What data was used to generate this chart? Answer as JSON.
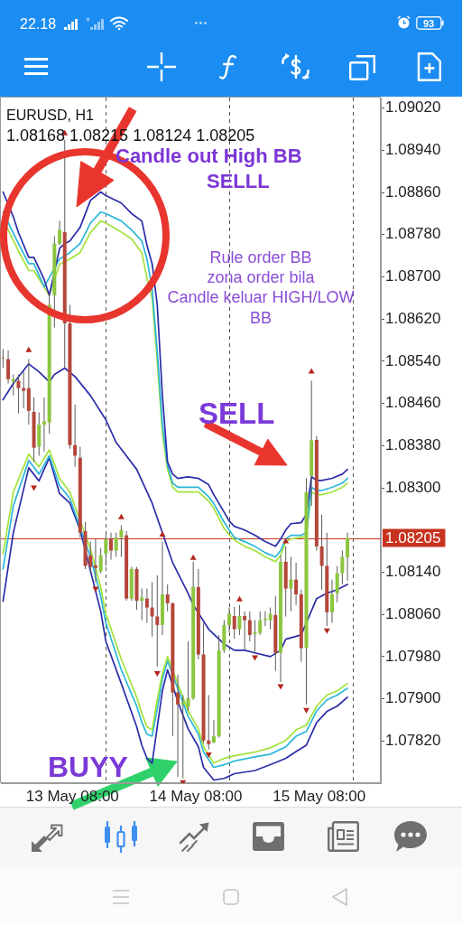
{
  "chart_data": {
    "type": "candlestick",
    "x": [
      "--05-12T18:30",
      "--05-12T19:30",
      "--05-12T20:30",
      "--05-12T21:30",
      "--05-12T22:30",
      "--05-12T23:30",
      "--05-13T00:30",
      "--05-13T01:30",
      "--05-13T02:30",
      "--05-13T03:30",
      "--05-13T04:30",
      "--05-13T05:30",
      "--05-13T06:30",
      "--05-13T07:30",
      "--05-13T08:30",
      "--05-13T09:30",
      "--05-13T10:30",
      "--05-13T11:30",
      "--05-13T12:30",
      "--05-13T13:30",
      "--05-13T14:30",
      "--05-13T15:30",
      "--05-13T16:30",
      "--05-13T17:30",
      "--05-13T18:30",
      "--05-13T19:30",
      "--05-13T20:30",
      "--05-13T21:30",
      "--05-13T22:30",
      "--05-13T23:30",
      "--05-14T00:30",
      "--05-14T01:30",
      "--05-14T02:30",
      "--05-14T03:30",
      "--05-14T04:30",
      "--05-14T05:30",
      "--05-14T06:30",
      "--05-14T07:30",
      "--05-14T08:30",
      "--05-14T09:30",
      "--05-14T10:30",
      "--05-14T11:30",
      "--05-14T12:30",
      "--05-14T13:30",
      "--05-14T14:30",
      "--05-14T15:30",
      "--05-14T16:30",
      "--05-14T17:30",
      "--05-14T18:30",
      "--05-14T19:30",
      "--05-14T20:30",
      "--05-14T21:30",
      "--05-14T22:30",
      "--05-14T23:30",
      "--05-15T00:30",
      "--05-15T01:30",
      "--05-15T02:30",
      "--05-15T03:30",
      "--05-15T04:30",
      "--05-15T05:30",
      "--05-15T06:30",
      "--05-15T07:30",
      "--05-15T08:30",
      "--05-15T09:30",
      "--05-15T10:30",
      "--05-15T11:30",
      "--05-15T12:30",
      "--05-15T13:30"
    ],
    "ohlc": [
      [
        1.08547,
        1.08563,
        1.08528,
        1.08546
      ],
      [
        1.08544,
        1.08561,
        1.08498,
        1.08506
      ],
      [
        1.08501,
        1.08515,
        1.08475,
        1.08506
      ],
      [
        1.08503,
        1.08515,
        1.08441,
        1.08489
      ],
      [
        1.08489,
        1.0852,
        1.08451,
        1.08484
      ],
      [
        1.08489,
        1.08544,
        1.0842,
        1.08446
      ],
      [
        1.08444,
        1.08472,
        1.08349,
        1.08376
      ],
      [
        1.08378,
        1.08443,
        1.08361,
        1.0842
      ],
      [
        1.0842,
        1.08472,
        1.08369,
        1.08426
      ],
      [
        1.08424,
        1.08669,
        1.08403,
        1.08647
      ],
      [
        1.08665,
        1.08777,
        1.08604,
        1.08763
      ],
      [
        1.08763,
        1.08806,
        1.0876,
        1.08789
      ],
      [
        1.08785,
        1.0896,
        1.08527,
        1.08612
      ],
      [
        1.08612,
        1.08647,
        1.08374,
        1.08381
      ],
      [
        1.08381,
        1.08458,
        1.0834,
        1.08361
      ],
      [
        1.08357,
        1.08378,
        1.08206,
        1.08215
      ],
      [
        1.08218,
        1.08235,
        1.08146,
        1.08152
      ],
      [
        1.08172,
        1.08198,
        1.08141,
        1.0815
      ],
      [
        1.08153,
        1.08203,
        1.08121,
        1.08148
      ],
      [
        1.08141,
        1.08186,
        1.08138,
        1.08172
      ],
      [
        1.08175,
        1.08211,
        1.08152,
        1.08203
      ],
      [
        1.08203,
        1.08215,
        1.08164,
        1.08181
      ],
      [
        1.08181,
        1.08215,
        1.08169,
        1.08206
      ],
      [
        1.08206,
        1.08229,
        1.08169,
        1.0822
      ],
      [
        1.0821,
        1.08218,
        1.08086,
        1.0809
      ],
      [
        1.0809,
        1.0815,
        1.08086,
        1.08146
      ],
      [
        1.08146,
        1.0815,
        1.08069,
        1.08086
      ],
      [
        1.08086,
        1.08109,
        1.08049,
        1.08092
      ],
      [
        1.0809,
        1.08109,
        1.08044,
        1.08073
      ],
      [
        1.08073,
        1.08121,
        1.08018,
        1.08056
      ],
      [
        1.08056,
        1.08134,
        1.07961,
        1.0804
      ],
      [
        1.0804,
        1.08198,
        1.08021,
        1.08098
      ],
      [
        1.08098,
        1.08117,
        1.08066,
        1.08081
      ],
      [
        1.08081,
        1.08083,
        1.07829,
        1.07912
      ],
      [
        1.07912,
        1.07946,
        1.07752,
        1.07889
      ],
      [
        1.07889,
        1.07907,
        1.07749,
        1.07893
      ],
      [
        1.07884,
        1.08009,
        1.07877,
        1.07901
      ],
      [
        1.07901,
        1.0816,
        1.07898,
        1.08112
      ],
      [
        1.08112,
        1.08146,
        1.07975,
        1.07984
      ],
      [
        1.07984,
        1.08044,
        1.07816,
        1.07821
      ],
      [
        1.07821,
        1.07907,
        1.07804,
        1.07814
      ],
      [
        1.07817,
        1.0786,
        1.07816,
        1.07829
      ],
      [
        1.07829,
        1.08021,
        1.07826,
        1.07992
      ],
      [
        1.07992,
        1.08049,
        1.07987,
        1.0804
      ],
      [
        1.0804,
        1.08073,
        1.08026,
        1.08061
      ],
      [
        1.08057,
        1.08074,
        1.08014,
        1.08032
      ],
      [
        1.08032,
        1.08078,
        1.08021,
        1.08057
      ],
      [
        1.08057,
        1.08066,
        1.07992,
        1.08049
      ],
      [
        1.08049,
        1.08066,
        1.08009,
        1.08021
      ],
      [
        1.08023,
        1.08049,
        1.07989,
        1.08026
      ],
      [
        1.08025,
        1.08066,
        1.08021,
        1.08049
      ],
      [
        1.08049,
        1.08066,
        1.08038,
        1.08052
      ],
      [
        1.08049,
        1.08073,
        1.08032,
        1.08061
      ],
      [
        1.08059,
        1.08095,
        1.07953,
        1.07987
      ],
      [
        1.07987,
        1.08172,
        1.07932,
        1.0816
      ],
      [
        1.0816,
        1.08189,
        1.08056,
        1.08109
      ],
      [
        1.08109,
        1.08169,
        1.08066,
        1.08126
      ],
      [
        1.08126,
        1.08158,
        1.08078,
        1.08098
      ],
      [
        1.08098,
        1.08107,
        1.0797,
        1.07996
      ],
      [
        1.07997,
        1.08318,
        1.07889,
        1.08292
      ],
      [
        1.08323,
        1.08503,
        1.08266,
        1.0839
      ],
      [
        1.08391,
        1.08398,
        1.08181,
        1.08189
      ],
      [
        1.08189,
        1.08249,
        1.08107,
        1.08152
      ],
      [
        1.08152,
        1.08215,
        1.08038,
        1.08064
      ],
      [
        1.08064,
        1.08126,
        1.08044,
        1.08098
      ],
      [
        1.081,
        1.08152,
        1.08083,
        1.08138
      ],
      [
        1.08138,
        1.08181,
        1.08117,
        1.08169
      ],
      [
        1.08168,
        1.08215,
        1.08124,
        1.08205
      ]
    ],
    "colors": [
      "#b5463a",
      "#b5463a",
      "#8cc63f",
      "#b5463a",
      "#b5463a",
      "#b5463a",
      "#b5463a",
      "#8cc63f",
      "#8cc63f",
      "#8cc63f",
      "#8cc63f",
      "#8cc63f",
      "#b5463a",
      "#b5463a",
      "#b5463a",
      "#b5463a",
      "#b5463a",
      "#b5463a",
      "#b5463a",
      "#8cc63f",
      "#8cc63f",
      "#b5463a",
      "#8cc63f",
      "#8cc63f",
      "#b5463a",
      "#8cc63f",
      "#b5463a",
      "#8cc63f",
      "#b5463a",
      "#b5463a",
      "#b5463a",
      "#8cc63f",
      "#b5463a",
      "#b5463a",
      "#b5463a",
      "#8cc63f",
      "#8cc63f",
      "#8cc63f",
      "#b5463a",
      "#b5463a",
      "#b5463a",
      "#8cc63f",
      "#8cc63f",
      "#8cc63f",
      "#8cc63f",
      "#b5463a",
      "#8cc63f",
      "#b5463a",
      "#b5463a",
      "#8cc63f",
      "#8cc63f",
      "#8cc63f",
      "#8cc63f",
      "#b5463a",
      "#8cc63f",
      "#b5463a",
      "#8cc63f",
      "#b5463a",
      "#b5463a",
      "#8cc63f",
      "#8cc63f",
      "#b5463a",
      "#b5463a",
      "#b5463a",
      "#8cc63f",
      "#8cc63f",
      "#8cc63f",
      "#8cc63f"
    ],
    "series": [
      {
        "type": "line",
        "color": "#2b2ca8",
        "x": [
          "--05-12T18:30",
          "--05-12T20:30",
          "--05-12T21:30",
          "--05-12T23:30",
          "--05-13T00:30",
          "--05-13T02:30",
          "--05-13T03:30",
          "--05-13T05:30",
          "--05-13T06:30",
          "--05-13T07:30",
          "--05-13T09:30",
          "--05-13T11:30",
          "--05-13T13:30",
          "--05-13T14:30",
          "--05-13T17:30",
          "--05-13T19:30",
          "--05-13T21:30",
          "--05-13T22:30",
          "--05-13T23:30",
          "--05-14T00:30",
          "--05-14T01:30",
          "--05-14T02:30",
          "--05-14T03:30",
          "--05-14T04:30",
          "--05-14T06:30",
          "--05-14T08:30",
          "--05-14T10:30",
          "--05-14T11:30",
          "--05-14T13:30",
          "--05-14T14:30",
          "--05-14T15:30",
          "--05-14T17:30",
          "--05-14T19:30",
          "--05-14T21:30",
          "--05-14T23:30",
          "--05-15T00:30",
          "--05-15T01:30",
          "--05-15T02:30",
          "--05-15T04:30",
          "--05-15T05:30",
          "--05-15T06:30",
          "--05-15T07:30",
          "--05-15T08:30",
          "--05-15T10:30",
          "--05-15T12:30",
          "--05-15T13:30"
        ],
        "values": [
          1.08861,
          1.08814,
          1.08784,
          1.08737,
          1.08737,
          1.08695,
          1.08665,
          1.08754,
          1.08763,
          1.08768,
          1.08794,
          1.08845,
          1.08861,
          1.08854,
          1.0884,
          1.0882,
          1.08806,
          1.0876,
          1.08725,
          1.08647,
          1.08475,
          1.08349,
          1.08326,
          1.08318,
          1.08321,
          1.08318,
          1.08306,
          1.08287,
          1.08254,
          1.08237,
          1.08227,
          1.0822,
          1.0821,
          1.08198,
          1.08189,
          1.08203,
          1.0822,
          1.08232,
          1.08234,
          1.08249,
          1.08321,
          1.08314,
          1.08314,
          1.08318,
          1.08326,
          1.08335
        ]
      },
      {
        "type": "line",
        "color": "#2bb6d8",
        "x": [
          "--05-12T18:30",
          "--05-12T21:30",
          "--05-12T23:30",
          "--05-13T00:30",
          "--05-13T02:30",
          "--05-13T05:30",
          "--05-13T07:30",
          "--05-13T09:30",
          "--05-13T11:30",
          "--05-13T13:30",
          "--05-13T14:30",
          "--05-13T17:30",
          "--05-13T19:30",
          "--05-13T21:30",
          "--05-13T22:30",
          "--05-13T23:30",
          "--05-14T00:30",
          "--05-14T01:30",
          "--05-14T02:30",
          "--05-14T03:30",
          "--05-14T04:30",
          "--05-14T06:30",
          "--05-14T08:30",
          "--05-14T10:30",
          "--05-14T11:30",
          "--05-14T13:30",
          "--05-14T14:30",
          "--05-14T15:30",
          "--05-14T17:30",
          "--05-14T19:30",
          "--05-14T21:30",
          "--05-14T23:30",
          "--05-15T00:30",
          "--05-15T01:30",
          "--05-15T02:30",
          "--05-15T04:30",
          "--05-15T05:30",
          "--05-15T06:30",
          "--05-15T07:30",
          "--05-15T08:30",
          "--05-15T10:30",
          "--05-15T12:30",
          "--05-15T13:30"
        ],
        "values": [
          1.08823,
          1.08763,
          1.08725,
          1.08725,
          1.08681,
          1.08734,
          1.08746,
          1.08763,
          1.08802,
          1.08823,
          1.0882,
          1.08806,
          1.08789,
          1.08768,
          1.08734,
          1.08677,
          1.08558,
          1.0842,
          1.08343,
          1.08309,
          1.08301,
          1.08301,
          1.08301,
          1.08283,
          1.0827,
          1.08235,
          1.0822,
          1.08206,
          1.08198,
          1.08189,
          1.08177,
          1.08169,
          1.08181,
          1.08203,
          1.0821,
          1.0821,
          1.08215,
          1.08301,
          1.08295,
          1.08295,
          1.08301,
          1.08309,
          1.08318
        ]
      },
      {
        "type": "line",
        "color": "#a3e23c",
        "x": [
          "--05-12T18:30",
          "--05-12T21:30",
          "--05-12T23:30",
          "--05-13T00:30",
          "--05-13T03:30",
          "--05-13T04:30",
          "--05-13T05:30",
          "--05-13T07:30",
          "--05-13T09:30",
          "--05-13T11:30",
          "--05-13T13:30",
          "--05-13T14:30",
          "--05-13T17:30",
          "--05-13T19:30",
          "--05-13T21:30",
          "--05-13T22:30",
          "--05-13T23:30",
          "--05-14T00:30",
          "--05-14T01:30",
          "--05-14T02:30",
          "--05-14T03:30",
          "--05-14T04:30",
          "--05-14T06:30",
          "--05-14T08:30",
          "--05-14T10:30",
          "--05-14T11:30",
          "--05-14T13:30",
          "--05-14T14:30",
          "--05-14T15:30",
          "--05-14T17:30",
          "--05-14T19:30",
          "--05-14T21:30",
          "--05-14T23:30",
          "--05-15T00:30",
          "--05-15T01:30",
          "--05-15T02:30",
          "--05-15T04:30",
          "--05-15T05:30",
          "--05-15T06:30",
          "--05-15T07:30",
          "--05-15T08:30",
          "--05-15T10:30",
          "--05-15T12:30",
          "--05-15T13:30"
        ],
        "values": [
          1.08809,
          1.08749,
          1.08712,
          1.08712,
          1.08665,
          1.08695,
          1.08724,
          1.08734,
          1.08746,
          1.08784,
          1.08806,
          1.08802,
          1.08785,
          1.08772,
          1.08746,
          1.08697,
          1.0866,
          1.0854,
          1.08403,
          1.08335,
          1.08301,
          1.08292,
          1.08292,
          1.08292,
          1.08275,
          1.08261,
          1.08223,
          1.08211,
          1.08201,
          1.08189,
          1.08181,
          1.08169,
          1.0816,
          1.08172,
          1.08198,
          1.08203,
          1.08206,
          1.0821,
          1.08292,
          1.08287,
          1.08287,
          1.08292,
          1.08301,
          1.08309
        ]
      },
      {
        "type": "line",
        "color": "#2b2ca8",
        "x": [
          "--05-12T18:30",
          "--05-12T20:30",
          "--05-12T23:30",
          "--05-13T01:30",
          "--05-13T03:30",
          "--05-13T04:30",
          "--05-13T06:30",
          "--05-13T08:30",
          "--05-13T11:30",
          "--05-13T14:30",
          "--05-13T16:30",
          "--05-13T20:30",
          "--05-13T23:30",
          "--05-14T01:30",
          "--05-14T03:30",
          "--05-14T06:30",
          "--05-14T07:30",
          "--05-14T10:30",
          "--05-14T13:30",
          "--05-14T15:30",
          "--05-14T17:30",
          "--05-14T19:30",
          "--05-14T22:30",
          "--05-15T00:30",
          "--05-15T01:30",
          "--05-15T04:30",
          "--05-15T07:30",
          "--05-15T09:30",
          "--05-15T11:30",
          "--05-15T13:30"
        ],
        "values": [
          1.08467,
          1.08498,
          1.08535,
          1.0852,
          1.08501,
          1.08515,
          1.08527,
          1.08511,
          1.08475,
          1.08429,
          1.08386,
          1.08335,
          1.08271,
          1.08215,
          1.08158,
          1.081,
          1.08078,
          1.08032,
          1.08004,
          1.07992,
          1.07992,
          1.07987,
          1.0798,
          1.07992,
          1.08013,
          1.08021,
          1.0809,
          1.081,
          1.08107,
          1.08117
        ]
      },
      {
        "type": "line",
        "color": "#a3e23c",
        "x": [
          "--05-12T18:30",
          "--05-12T20:30",
          "--05-12T23:30",
          "--05-13T01:30",
          "--05-13T03:30",
          "--05-13T05:30",
          "--05-13T07:30",
          "--05-13T11:30",
          "--05-13T13:30",
          "--05-13T14:30",
          "--05-13T17:30",
          "--05-13T20:30",
          "--05-13T21:30",
          "--05-13T22:30",
          "--05-13T23:30",
          "--05-14T00:30",
          "--05-14T01:30",
          "--05-14T02:30",
          "--05-14T04:30",
          "--05-14T06:30",
          "--05-14T08:30",
          "--05-14T09:30",
          "--05-14T11:30",
          "--05-14T13:30",
          "--05-14T15:30",
          "--05-14T19:30",
          "--05-14T22:30",
          "--05-15T01:30",
          "--05-15T03:30",
          "--05-15T05:30",
          "--05-15T07:30",
          "--05-15T09:30",
          "--05-15T11:30",
          "--05-15T13:30"
        ],
        "values": [
          1.08175,
          1.08292,
          1.08364,
          1.0834,
          1.08372,
          1.08318,
          1.08292,
          1.08184,
          1.08112,
          1.08061,
          1.07975,
          1.07903,
          1.07872,
          1.07847,
          1.07841,
          1.07898,
          1.07949,
          1.0798,
          1.07929,
          1.07877,
          1.07843,
          1.07809,
          1.07778,
          1.07787,
          1.07792,
          1.07799,
          1.07807,
          1.07821,
          1.07841,
          1.0785,
          1.07886,
          1.07907,
          1.07915,
          1.07929
        ]
      },
      {
        "type": "line",
        "color": "#2bb6d8",
        "x": [
          "--05-12T18:30",
          "--05-12T20:30",
          "--05-12T23:30",
          "--05-13T01:30",
          "--05-13T03:30",
          "--05-13T05:30",
          "--05-13T07:30",
          "--05-13T11:30",
          "--05-13T13:30",
          "--05-13T14:30",
          "--05-13T17:30",
          "--05-13T20:30",
          "--05-13T21:30",
          "--05-13T22:30",
          "--05-13T23:30",
          "--05-14T00:30",
          "--05-14T01:30",
          "--05-14T02:30",
          "--05-14T04:30",
          "--05-14T06:30",
          "--05-14T08:30",
          "--05-14T09:30",
          "--05-14T11:30",
          "--05-14T13:30",
          "--05-14T15:30",
          "--05-14T19:30",
          "--05-14T22:30",
          "--05-15T01:30",
          "--05-15T03:30",
          "--05-15T05:30",
          "--05-15T07:30",
          "--05-15T09:30",
          "--05-15T11:30",
          "--05-15T13:30"
        ],
        "values": [
          1.08146,
          1.08266,
          1.08352,
          1.08326,
          1.08361,
          1.08304,
          1.0828,
          1.08169,
          1.08095,
          1.08044,
          1.07955,
          1.07886,
          1.07855,
          1.07833,
          1.07829,
          1.07881,
          1.07937,
          1.07972,
          1.07919,
          1.07867,
          1.07833,
          1.07799,
          1.0777,
          1.07775,
          1.07782,
          1.0779,
          1.07795,
          1.07809,
          1.07829,
          1.07838,
          1.07877,
          1.07898,
          1.07907,
          1.0792
        ]
      },
      {
        "type": "line",
        "color": "#2b2ca8",
        "x": [
          "--05-12T18:30",
          "--05-12T20:30",
          "--05-12T23:30",
          "--05-13T01:30",
          "--05-13T03:30",
          "--05-13T05:30",
          "--05-13T07:30",
          "--05-13T09:30",
          "--05-13T13:30",
          "--05-13T14:30",
          "--05-13T17:30",
          "--05-13T20:30",
          "--05-13T21:30",
          "--05-13T22:30",
          "--05-13T23:30",
          "--05-14T00:30",
          "--05-14T01:30",
          "--05-14T02:30",
          "--05-14T04:30",
          "--05-14T06:30",
          "--05-14T08:30",
          "--05-14T09:30",
          "--05-14T11:30",
          "--05-14T13:30",
          "--05-14T15:30",
          "--05-14T19:30",
          "--05-14T22:30",
          "--05-15T01:30",
          "--05-15T03:30",
          "--05-15T05:30",
          "--05-15T07:30",
          "--05-15T09:30",
          "--05-15T11:30",
          "--05-15T13:30"
        ],
        "values": [
          1.08085,
          1.08215,
          1.08338,
          1.08313,
          1.08357,
          1.08289,
          1.08271,
          1.0822,
          1.08066,
          1.08009,
          1.07929,
          1.07847,
          1.07812,
          1.07787,
          1.07778,
          1.07847,
          1.07915,
          1.07955,
          1.07895,
          1.07843,
          1.07809,
          1.0777,
          1.07746,
          1.07749,
          1.07758,
          1.07764,
          1.07775,
          1.07787,
          1.078,
          1.07812,
          1.07855,
          1.07876,
          1.07886,
          1.07903
        ]
      },
      {
        "type": "scatter",
        "color": "#b3261e",
        "marker": "triangle",
        "x": [
          "--05-12T23:30",
          "--05-13T06:30",
          "--05-13T17:30",
          "--05-14T01:30",
          "--05-14T07:30",
          "--05-14T16:30",
          "--05-15T01:30",
          "--05-15T06:30"
        ],
        "values": [
          1.08561,
          1.08972,
          1.08244,
          1.08211,
          1.08167,
          1.08088,
          1.08198,
          1.0852
        ]
      },
      {
        "type": "scatter",
        "color": "#b3261e",
        "marker": "triangle",
        "x": [
          "--05-13T00:30",
          "--05-13T12:30",
          "--05-14T00:30",
          "--05-14T05:30",
          "--05-14T10:30",
          "--05-14T19:30",
          "--05-15T00:30",
          "--05-15T05:30",
          "--05-15T09:30"
        ],
        "values": [
          1.08301,
          1.08109,
          1.07949,
          1.07742,
          1.07795,
          1.07979,
          1.07924,
          1.07879,
          1.0803
        ]
      }
    ],
    "xlim": [
      "--05-12T18:05",
      "--05-15T19:59"
    ],
    "ylim": [
      1.0774,
      1.0904
    ],
    "xticks": [
      {
        "value": "--05-13T08:00",
        "label": "13 May 08:00"
      },
      {
        "value": "--05-14T08:00",
        "label": "14 May 08:00"
      },
      {
        "value": "--05-15T08:00",
        "label": "15 May 08:00"
      }
    ],
    "yticks": [
      {
        "value": 1.0902,
        "label": "1.09020"
      },
      {
        "value": 1.0894,
        "label": "1.08940"
      },
      {
        "value": 1.0886,
        "label": "1.08860"
      },
      {
        "value": 1.0878,
        "label": "1.08780"
      },
      {
        "value": 1.087,
        "label": "1.08700"
      },
      {
        "value": 1.0862,
        "label": "1.08620"
      },
      {
        "value": 1.0854,
        "label": "1.08540"
      },
      {
        "value": 1.0846,
        "label": "1.08460"
      },
      {
        "value": 1.0838,
        "label": "1.08380"
      },
      {
        "value": 1.083,
        "label": "1.08300"
      },
      {
        "value": 1.0814,
        "label": "1.08140"
      },
      {
        "value": 1.0806,
        "label": "1.08060"
      },
      {
        "value": 1.0798,
        "label": "1.07980"
      },
      {
        "value": 1.079,
        "label": "1.07900"
      },
      {
        "value": 1.0782,
        "label": "1.07820"
      }
    ],
    "ref_lines": [
      {
        "axis": "y",
        "value": 1.08205,
        "label": "1.08205",
        "color": "#c8321f"
      },
      {
        "axis": "x",
        "value": "--05-13T14:30",
        "line_style": "dashed",
        "color": "#555555"
      },
      {
        "axis": "x",
        "value": "--05-14T14:30",
        "line_style": "dashed",
        "color": "#555555"
      },
      {
        "axis": "x",
        "value": "--05-15T14:30",
        "line_style": "dashed",
        "color": "#555555"
      }
    ],
    "annotations": [
      "EURUSD, H1",
      "1.08168 1.08215 1.08124 1.08205",
      "Candle out High BB",
      "SELLL",
      "Rule order BB",
      "zona order bila",
      "Candle keluar HIGH/LOW",
      "BB",
      "SELL",
      "BUYY",
      "22.18",
      "93"
    ]
  }
}
